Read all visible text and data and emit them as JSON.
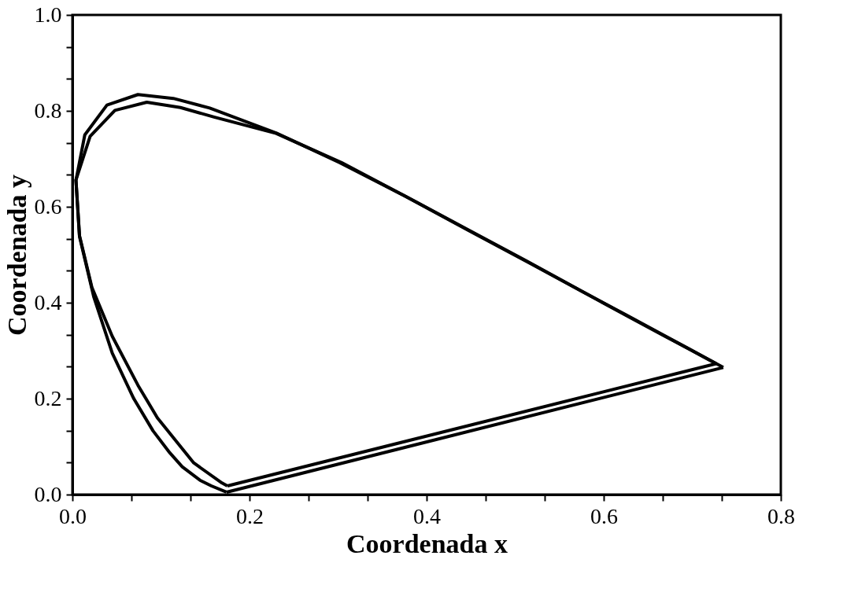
{
  "chart_data": {
    "type": "line",
    "xlabel": "Coordenada x",
    "ylabel": "Coordenada y",
    "xlim": [
      0,
      0.8
    ],
    "ylim": [
      0,
      1.0
    ],
    "xticks": [
      {
        "value": 0,
        "label": "0.0"
      },
      {
        "value": 0.0667,
        "label": null
      },
      {
        "value": 0.1333,
        "label": null
      },
      0.2,
      {
        "value": 0.2667,
        "label": null
      },
      {
        "value": 0.3333,
        "label": null
      },
      0.4,
      {
        "value": 0.4667,
        "label": null
      },
      {
        "value": 0.5333,
        "label": null
      },
      0.6,
      {
        "value": 0.6667,
        "label": null
      },
      {
        "value": 0.7333,
        "label": null
      },
      0.8
    ],
    "yticks": [
      {
        "value": 0,
        "label": "0.0"
      },
      {
        "value": 0.0667,
        "label": null
      },
      {
        "value": 0.1333,
        "label": null
      },
      0.2,
      {
        "value": 0.2667,
        "label": null
      },
      {
        "value": 0.3333,
        "label": null
      },
      0.4,
      {
        "value": 0.4667,
        "label": null
      },
      {
        "value": 0.5333,
        "label": null
      },
      0.6,
      {
        "value": 0.6667,
        "label": null
      },
      {
        "value": 0.7333,
        "label": null
      },
      0.8,
      {
        "value": 0.8667,
        "label": null
      },
      {
        "value": 0.9333,
        "label": null
      },
      {
        "value": 1.0,
        "label": "1.0"
      }
    ],
    "grid": false,
    "legend": false,
    "marker": "none",
    "line_style": "solid",
    "series": [
      {
        "color": "#000000",
        "x": [
          0.174,
          0.157,
          0.144,
          0.124,
          0.11,
          0.091,
          0.069,
          0.045,
          0.024,
          0.008,
          0.004,
          0.014,
          0.039,
          0.074,
          0.114,
          0.155,
          0.23,
          0.302,
          0.373,
          0.444,
          0.513,
          0.575,
          0.627,
          0.666,
          0.692,
          0.719,
          0.735
        ],
        "values": [
          0.005,
          0.018,
          0.03,
          0.058,
          0.087,
          0.133,
          0.201,
          0.295,
          0.413,
          0.538,
          0.655,
          0.75,
          0.812,
          0.834,
          0.826,
          0.806,
          0.754,
          0.692,
          0.625,
          0.555,
          0.487,
          0.424,
          0.373,
          0.334,
          0.308,
          0.281,
          0.265
        ]
      },
      {
        "color": "#000000",
        "x": [
          0.174,
          0.735
        ],
        "values": [
          0.005,
          0.265
        ]
      },
      {
        "color": "#000000",
        "x": [
          0.175,
          0.169,
          0.137,
          0.096,
          0.074,
          0.045,
          0.022,
          0.008,
          0.004,
          0.02,
          0.048,
          0.084,
          0.122,
          0.16,
          0.23,
          0.304,
          0.377,
          0.448,
          0.517,
          0.579,
          0.63,
          0.668,
          0.695,
          0.715,
          0.727
        ],
        "values": [
          0.018,
          0.024,
          0.066,
          0.16,
          0.228,
          0.33,
          0.432,
          0.54,
          0.656,
          0.747,
          0.801,
          0.818,
          0.807,
          0.787,
          0.753,
          0.692,
          0.621,
          0.55,
          0.482,
          0.42,
          0.369,
          0.331,
          0.305,
          0.285,
          0.273
        ]
      },
      {
        "color": "#000000",
        "x": [
          0.175,
          0.727
        ],
        "values": [
          0.018,
          0.273
        ]
      }
    ]
  }
}
